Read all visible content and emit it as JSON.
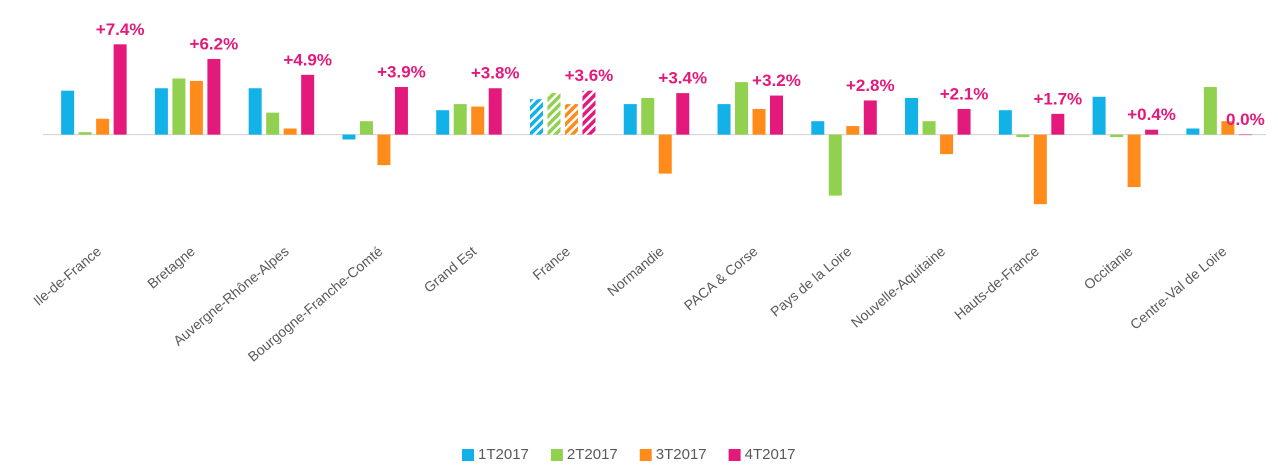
{
  "chart_data": {
    "type": "bar",
    "categories": [
      "Ile-de-France",
      "Bretagne",
      "Auvergne-Rhône-Alpes",
      "Bourgogne-Franche-Comté",
      "Grand Est",
      "France",
      "Normandie",
      "PACA & Corse",
      "Pays de la Loire",
      "Nouvelle-Aquitaine",
      "Hauts-de-France",
      "Occitanie",
      "Centre-Val de Loire"
    ],
    "series": [
      {
        "name": "1T2017",
        "color": "#12b1e8",
        "values": [
          3.6,
          3.8,
          3.8,
          -0.4,
          2.0,
          2.9,
          2.5,
          2.5,
          1.1,
          3.0,
          2.0,
          3.1,
          0.5
        ]
      },
      {
        "name": "2T2017",
        "color": "#92d050",
        "values": [
          0.2,
          4.6,
          1.8,
          1.1,
          2.5,
          3.4,
          3.0,
          4.3,
          -5.0,
          1.1,
          -0.2,
          -0.2,
          3.9
        ]
      },
      {
        "name": "3T2017",
        "color": "#ff8c1a",
        "values": [
          1.3,
          4.4,
          0.5,
          -2.5,
          2.3,
          2.5,
          -3.2,
          2.1,
          0.7,
          -1.6,
          -5.7,
          -4.3,
          1.1
        ]
      },
      {
        "name": "4T2017",
        "color": "#e3197b",
        "values": [
          7.4,
          6.2,
          4.9,
          3.9,
          3.8,
          3.6,
          3.4,
          3.2,
          2.8,
          2.1,
          1.7,
          0.4,
          0.0
        ],
        "value_labels": [
          "+7.4%",
          "+6.2%",
          "+4.9%",
          "+3.9%",
          "+3.8%",
          "+3.6%",
          "+3.4%",
          "+3.2%",
          "+2.8%",
          "+2.1%",
          "+1.7%",
          "+0.4%",
          "0.0%"
        ]
      }
    ],
    "ylim": [
      -7,
      8
    ],
    "hatched_index": 5,
    "legend": "bottom"
  }
}
